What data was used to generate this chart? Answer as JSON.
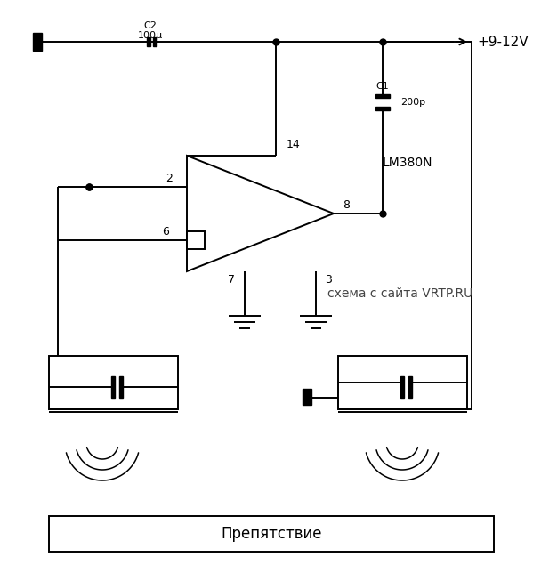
{
  "bg_color": "#ffffff",
  "line_color": "#000000",
  "fig_width": 6.08,
  "fig_height": 6.35,
  "power_label": "+9-12V",
  "cap_c2_label": "C2",
  "cap_c2_val": "100μ",
  "cap_c1_label": "C1",
  "cap_c1_val": "200p",
  "ic_label": "LM380N",
  "watermark": "схема с сайта VRTP.RU",
  "obstacle_label": "Препятствие"
}
